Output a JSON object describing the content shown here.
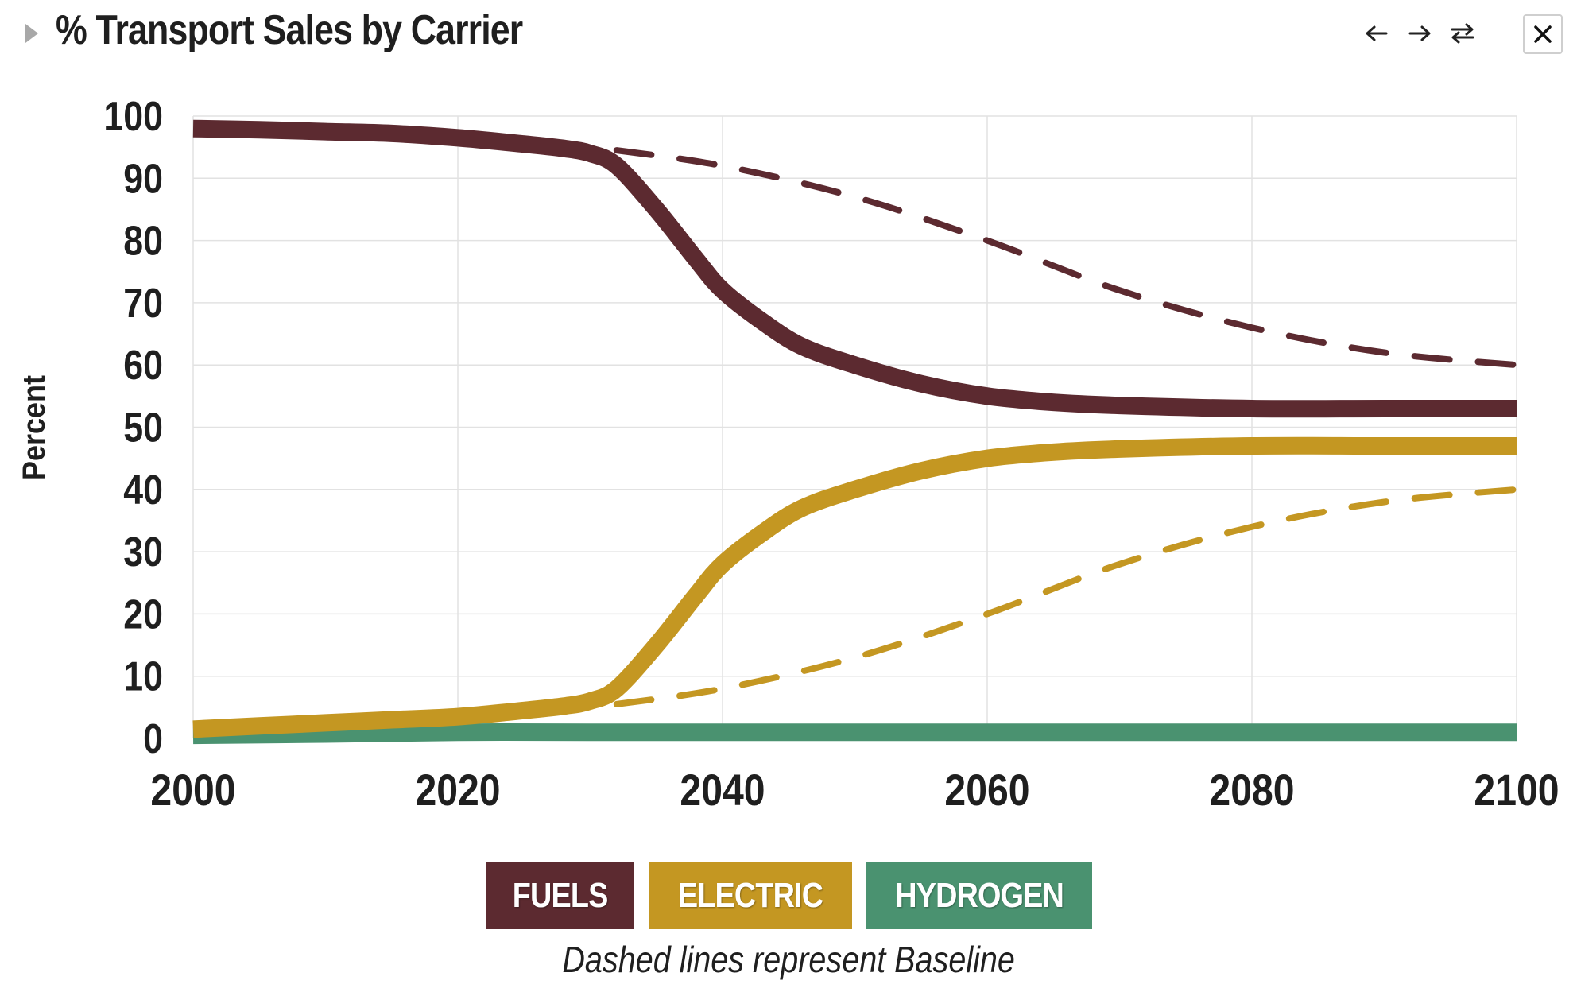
{
  "header": {
    "title": "% Transport Sales by Carrier",
    "icons": [
      "caret-right-icon",
      "arrow-left-icon",
      "arrow-right-icon",
      "swap-icon",
      "close-icon"
    ]
  },
  "colors": {
    "fuels": "#5c2a30",
    "electric": "#c49722",
    "hydrogen": "#4a9270",
    "grid": "#e2e2e2",
    "axis_text": "#1f1f1f"
  },
  "legend": {
    "fuels": "FUELS",
    "electric": "ELECTRIC",
    "hydrogen": "HYDROGEN"
  },
  "note": "Dashed lines represent Baseline",
  "chart_data": {
    "type": "line",
    "ylabel": "Percent",
    "xlabel": "",
    "xlim": [
      2000,
      2100
    ],
    "ylim": [
      0,
      100
    ],
    "x_ticks": [
      "2000",
      "2020",
      "2040",
      "2060",
      "2080",
      "2100"
    ],
    "y_ticks": [
      "0",
      "10",
      "20",
      "30",
      "40",
      "50",
      "60",
      "70",
      "80",
      "90",
      "100"
    ],
    "grid": true,
    "legend_position": "bottom-center",
    "series": [
      {
        "name": "FUELS",
        "style": "solid",
        "x": [
          2000,
          2005,
          2010,
          2015,
          2020,
          2025,
          2028,
          2030,
          2032,
          2035,
          2038,
          2040,
          2043,
          2046,
          2050,
          2055,
          2060,
          2065,
          2070,
          2080,
          2090,
          2100
        ],
        "y": [
          98,
          97.8,
          97.5,
          97.2,
          96.5,
          95.5,
          94.8,
          94,
          92,
          85,
          77,
          72,
          67,
          63,
          60,
          57,
          55,
          54,
          53.5,
          53,
          53,
          53
        ]
      },
      {
        "name": "ELECTRIC",
        "style": "solid",
        "x": [
          2000,
          2005,
          2010,
          2015,
          2020,
          2025,
          2028,
          2030,
          2032,
          2035,
          2038,
          2040,
          2043,
          2046,
          2050,
          2055,
          2060,
          2065,
          2070,
          2080,
          2090,
          2100
        ],
        "y": [
          1.5,
          2,
          2.5,
          3,
          3.5,
          4.5,
          5.2,
          6,
          8,
          15,
          23,
          28,
          33,
          37,
          40,
          43,
          45,
          46,
          46.5,
          47,
          47,
          47
        ]
      },
      {
        "name": "HYDROGEN",
        "style": "solid",
        "x": [
          2000,
          2010,
          2020,
          2030,
          2040,
          2060,
          2080,
          2100
        ],
        "y": [
          0.5,
          0.7,
          1,
          1,
          1,
          1,
          1,
          1
        ]
      },
      {
        "name": "FUELS",
        "style": "dashed",
        "x": [
          2032,
          2040,
          2050,
          2060,
          2070,
          2080,
          2090,
          2100
        ],
        "y": [
          94.5,
          92,
          87,
          80,
          72,
          66,
          62,
          60
        ]
      },
      {
        "name": "ELECTRIC",
        "style": "dashed",
        "x": [
          2032,
          2040,
          2050,
          2060,
          2070,
          2080,
          2090,
          2100
        ],
        "y": [
          5.5,
          8,
          13,
          20,
          28,
          34,
          38,
          40
        ]
      }
    ]
  }
}
